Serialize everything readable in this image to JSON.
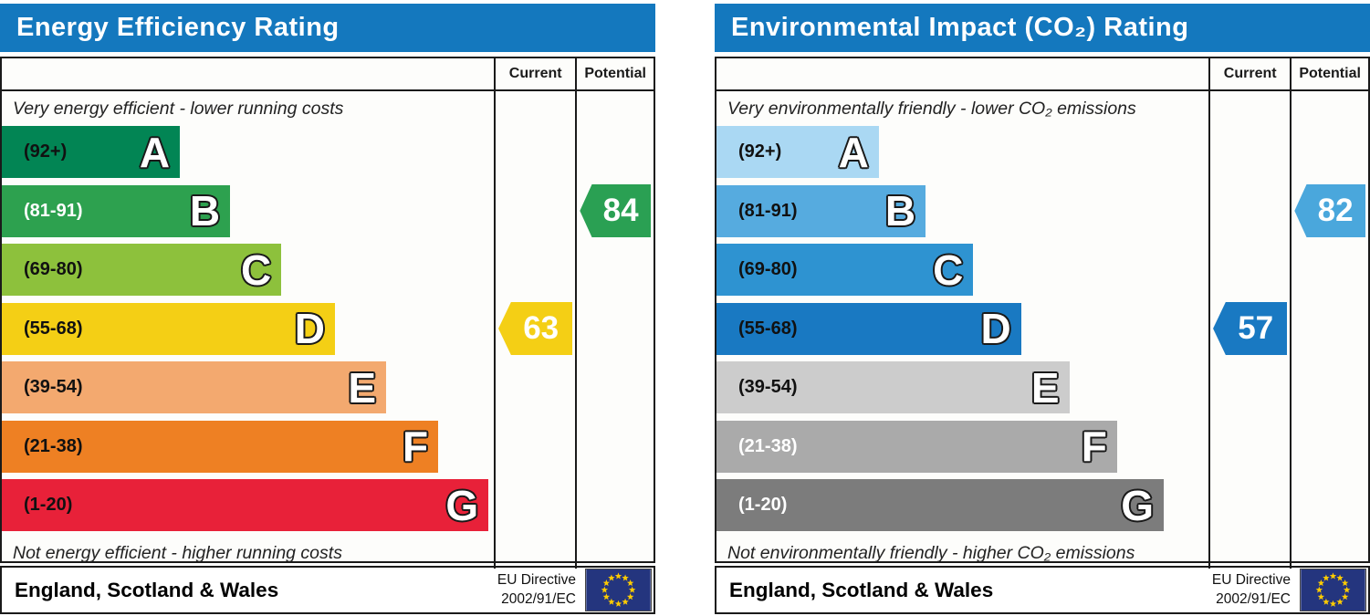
{
  "page_background": "#ffffff",
  "eu_flag": {
    "blue": "#24357e",
    "star": "#ffcc00"
  },
  "chart_data": [
    {
      "type": "bar",
      "variant": "epc-energy-efficiency-rating",
      "title": "Energy Efficiency Rating",
      "header_color": "#1478be",
      "columns": {
        "current_label": "Current",
        "potential_label": "Potential"
      },
      "top_note": "Very energy efficient - lower running costs",
      "bottom_note": "Not energy efficient - higher running costs",
      "bands": [
        {
          "letter": "A",
          "range": "(92+)",
          "score_range": [
            92,
            100
          ],
          "color": "#028554",
          "label_color": "#111111",
          "width_pct": 36.2
        },
        {
          "letter": "B",
          "range": "(81-91)",
          "score_range": [
            81,
            91
          ],
          "color": "#2da14f",
          "label_color": "#ffffff",
          "width_pct": 46.4
        },
        {
          "letter": "C",
          "range": "(69-80)",
          "score_range": [
            69,
            80
          ],
          "color": "#8dc13c",
          "label_color": "#111111",
          "width_pct": 56.8
        },
        {
          "letter": "D",
          "range": "(55-68)",
          "score_range": [
            55,
            68
          ],
          "color": "#f4cf15",
          "label_color": "#111111",
          "width_pct": 67.7
        },
        {
          "letter": "E",
          "range": "(39-54)",
          "score_range": [
            39,
            54
          ],
          "color": "#f3a96f",
          "label_color": "#111111",
          "width_pct": 78.1
        },
        {
          "letter": "F",
          "range": "(21-38)",
          "score_range": [
            21,
            38
          ],
          "color": "#ee8023",
          "label_color": "#111111",
          "width_pct": 88.7
        },
        {
          "letter": "G",
          "range": "(1-20)",
          "score_range": [
            1,
            20
          ],
          "color": "#e82139",
          "label_color": "#111111",
          "width_pct": 98.9
        }
      ],
      "current": {
        "value": 63,
        "band": "D",
        "arrow_color": "#f4cf15"
      },
      "potential": {
        "value": 84,
        "band": "B",
        "arrow_color": "#2aa053"
      },
      "footer": {
        "region": "England, Scotland & Wales",
        "directive_line1": "EU Directive",
        "directive_line2": "2002/91/EC"
      }
    },
    {
      "type": "bar",
      "variant": "epc-environmental-impact-co2-rating",
      "title": "Environmental Impact (CO₂) Rating",
      "header_color": "#1478be",
      "columns": {
        "current_label": "Current",
        "potential_label": "Potential"
      },
      "top_note": "Very environmentally friendly - lower CO₂ emissions",
      "bottom_note": "Not environmentally friendly - higher CO₂ emissions",
      "bands": [
        {
          "letter": "A",
          "range": "(92+)",
          "score_range": [
            92,
            100
          ],
          "color": "#aad8f3",
          "label_color": "#111111",
          "width_pct": 33.0
        },
        {
          "letter": "B",
          "range": "(81-91)",
          "score_range": [
            81,
            91
          ],
          "color": "#56abdf",
          "label_color": "#111111",
          "width_pct": 42.5
        },
        {
          "letter": "C",
          "range": "(69-80)",
          "score_range": [
            69,
            80
          ],
          "color": "#2e93d1",
          "label_color": "#111111",
          "width_pct": 52.2
        },
        {
          "letter": "D",
          "range": "(55-68)",
          "score_range": [
            55,
            68
          ],
          "color": "#1979c2",
          "label_color": "#111111",
          "width_pct": 61.9
        },
        {
          "letter": "E",
          "range": "(39-54)",
          "score_range": [
            39,
            54
          ],
          "color": "#cccccc",
          "label_color": "#111111",
          "width_pct": 71.7
        },
        {
          "letter": "F",
          "range": "(21-38)",
          "score_range": [
            21,
            38
          ],
          "color": "#aaaaaa",
          "label_color": "#ffffff",
          "width_pct": 81.4
        },
        {
          "letter": "G",
          "range": "(1-20)",
          "score_range": [
            1,
            20
          ],
          "color": "#7c7c7c",
          "label_color": "#ffffff",
          "width_pct": 90.9
        }
      ],
      "current": {
        "value": 57,
        "band": "D",
        "arrow_color": "#1979c2"
      },
      "potential": {
        "value": 82,
        "band": "B",
        "arrow_color": "#4aa7dc"
      },
      "footer": {
        "region": "England, Scotland & Wales",
        "directive_line1": "EU Directive",
        "directive_line2": "2002/91/EC"
      }
    }
  ]
}
